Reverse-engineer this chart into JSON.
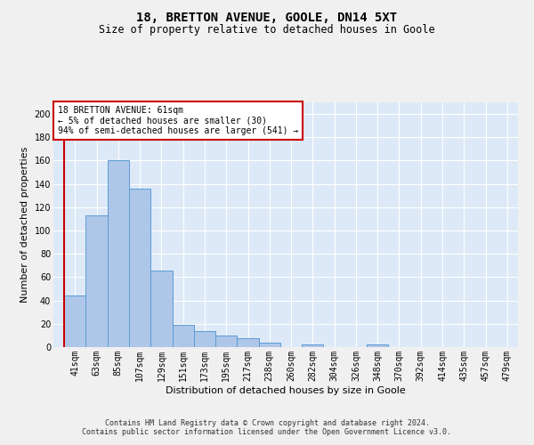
{
  "title": "18, BRETTON AVENUE, GOOLE, DN14 5XT",
  "subtitle": "Size of property relative to detached houses in Goole",
  "xlabel": "Distribution of detached houses by size in Goole",
  "ylabel": "Number of detached properties",
  "categories": [
    "41sqm",
    "63sqm",
    "85sqm",
    "107sqm",
    "129sqm",
    "151sqm",
    "173sqm",
    "195sqm",
    "217sqm",
    "238sqm",
    "260sqm",
    "282sqm",
    "304sqm",
    "326sqm",
    "348sqm",
    "370sqm",
    "392sqm",
    "414sqm",
    "435sqm",
    "457sqm",
    "479sqm"
  ],
  "bar_values": [
    44,
    113,
    160,
    136,
    66,
    19,
    14,
    10,
    8,
    4,
    0,
    2,
    0,
    0,
    2,
    0,
    0,
    0,
    0,
    0,
    0
  ],
  "bar_color": "#aec6e8",
  "bar_edge_color": "#5b9bd5",
  "background_color": "#dde9f7",
  "grid_color": "#ffffff",
  "marker_line_color": "#cc0000",
  "annotation_text": "18 BRETTON AVENUE: 61sqm\n← 5% of detached houses are smaller (30)\n94% of semi-detached houses are larger (541) →",
  "annotation_box_color": "#ffffff",
  "annotation_box_edge": "#cc0000",
  "ylim": [
    0,
    210
  ],
  "yticks": [
    0,
    20,
    40,
    60,
    80,
    100,
    120,
    140,
    160,
    180,
    200
  ],
  "footnote": "Contains HM Land Registry data © Crown copyright and database right 2024.\nContains public sector information licensed under the Open Government Licence v3.0.",
  "title_fontsize": 10,
  "subtitle_fontsize": 8.5,
  "xlabel_fontsize": 8,
  "ylabel_fontsize": 8,
  "tick_fontsize": 7,
  "annotation_fontsize": 7,
  "footnote_fontsize": 6
}
